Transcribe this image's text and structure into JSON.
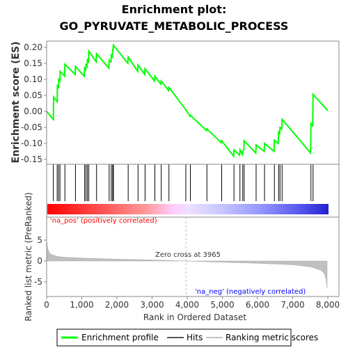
{
  "title_line1": "Enrichment plot:",
  "title_line2": "GO_PYRUVATE_METABOLIC_PROCESS",
  "colors": {
    "enrichment": "#00ff00",
    "hits": "#000000",
    "metric_fill": "#c0c0c0",
    "pos_label": "#ff0000",
    "neg_label": "#0000ff"
  },
  "chart_data": [
    {
      "type": "line",
      "name": "enrichment-score-panel",
      "ylabel": "Enrichment score (ES)",
      "xlim": [
        0,
        8000
      ],
      "ylim": [
        -0.16,
        0.22
      ],
      "yticks": [
        -0.15,
        -0.1,
        -0.05,
        0.0,
        0.05,
        0.1,
        0.15,
        0.2
      ],
      "yticklabels": [
        "-0.15",
        "-0.10",
        "-0.05",
        "0.00",
        "0.05",
        "0.10",
        "0.15",
        "0.20"
      ],
      "grid": false,
      "hits": [
        190,
        300,
        340,
        380,
        520,
        820,
        1080,
        1120,
        1160,
        1200,
        1420,
        1780,
        1840,
        1880,
        1900,
        2320,
        2600,
        2800,
        3080,
        3260,
        3480,
        3960,
        4090,
        4560,
        4980,
        5330,
        5500,
        5580,
        5620,
        5960,
        6200,
        6480,
        6600,
        6640,
        6700,
        7520,
        7580
      ],
      "es_points": [
        [
          0,
          0.0
        ],
        [
          190,
          -0.025
        ],
        [
          200,
          0.045
        ],
        [
          300,
          0.03
        ],
        [
          305,
          0.08
        ],
        [
          340,
          0.075
        ],
        [
          345,
          0.1
        ],
        [
          380,
          0.095
        ],
        [
          385,
          0.125
        ],
        [
          510,
          0.11
        ],
        [
          520,
          0.147
        ],
        [
          810,
          0.115
        ],
        [
          820,
          0.14
        ],
        [
          1070,
          0.11
        ],
        [
          1080,
          0.135
        ],
        [
          1110,
          0.13
        ],
        [
          1120,
          0.145
        ],
        [
          1150,
          0.14
        ],
        [
          1160,
          0.16
        ],
        [
          1190,
          0.155
        ],
        [
          1200,
          0.188
        ],
        [
          1410,
          0.155
        ],
        [
          1420,
          0.18
        ],
        [
          1770,
          0.135
        ],
        [
          1780,
          0.16
        ],
        [
          1830,
          0.155
        ],
        [
          1840,
          0.175
        ],
        [
          1870,
          0.17
        ],
        [
          1880,
          0.195
        ],
        [
          1890,
          0.19
        ],
        [
          1900,
          0.207
        ],
        [
          2310,
          0.15
        ],
        [
          2320,
          0.17
        ],
        [
          2590,
          0.125
        ],
        [
          2600,
          0.145
        ],
        [
          2790,
          0.115
        ],
        [
          2800,
          0.133
        ],
        [
          3070,
          0.095
        ],
        [
          3080,
          0.11
        ],
        [
          3250,
          0.085
        ],
        [
          3260,
          0.095
        ],
        [
          3470,
          0.065
        ],
        [
          3480,
          0.075
        ],
        [
          3960,
          0.005
        ],
        [
          4080,
          -0.015
        ],
        [
          4090,
          -0.012
        ],
        [
          4550,
          -0.06
        ],
        [
          4560,
          -0.055
        ],
        [
          4970,
          -0.098
        ],
        [
          4980,
          -0.092
        ],
        [
          5320,
          -0.14
        ],
        [
          5330,
          -0.12
        ],
        [
          5490,
          -0.137
        ],
        [
          5500,
          -0.12
        ],
        [
          5570,
          -0.135
        ],
        [
          5580,
          -0.125
        ],
        [
          5610,
          -0.12
        ],
        [
          5620,
          -0.092
        ],
        [
          5950,
          -0.13
        ],
        [
          5960,
          -0.105
        ],
        [
          6190,
          -0.125
        ],
        [
          6200,
          -0.1
        ],
        [
          6470,
          -0.125
        ],
        [
          6480,
          -0.09
        ],
        [
          6590,
          -0.1
        ],
        [
          6600,
          -0.065
        ],
        [
          6630,
          -0.07
        ],
        [
          6640,
          -0.05
        ],
        [
          6690,
          -0.055
        ],
        [
          6700,
          -0.025
        ],
        [
          7510,
          -0.13
        ],
        [
          7520,
          -0.038
        ],
        [
          7570,
          -0.045
        ],
        [
          7580,
          0.053
        ],
        [
          8000,
          0.002
        ]
      ]
    },
    {
      "type": "area",
      "name": "ranked-metric-panel",
      "xlabel": "Rank in Ordered Dataset",
      "ylabel": "Ranked list metric (PreRanked)",
      "xlim": [
        0,
        8000
      ],
      "ylim": [
        -7,
        8
      ],
      "xticks": [
        0,
        1000,
        2000,
        3000,
        4000,
        5000,
        6000,
        7000,
        8000
      ],
      "xticklabels": [
        "0",
        "1,000",
        "2,000",
        "3,000",
        "4,000",
        "5,000",
        "6,000",
        "7,000",
        "8,000"
      ],
      "yticks": [
        -5,
        0,
        5
      ],
      "yticklabels": [
        "-5",
        "0",
        "5"
      ],
      "metric_points": [
        [
          0,
          5.0
        ],
        [
          30,
          3.0
        ],
        [
          80,
          2.0
        ],
        [
          150,
          1.5
        ],
        [
          300,
          1.1
        ],
        [
          500,
          0.9
        ],
        [
          1000,
          0.7
        ],
        [
          2000,
          0.45
        ],
        [
          3000,
          0.25
        ],
        [
          3965,
          0.0
        ],
        [
          5000,
          -0.3
        ],
        [
          6000,
          -0.55
        ],
        [
          7000,
          -0.9
        ],
        [
          7500,
          -1.4
        ],
        [
          7800,
          -2.2
        ],
        [
          7900,
          -3.0
        ],
        [
          7950,
          -4.5
        ],
        [
          7980,
          -6.5
        ]
      ],
      "zero_cross_label": "Zero cross at 3965",
      "zero_cross": 3965,
      "pos_label": "'na_pos' (positively correlated)",
      "neg_label": "'na_neg' (negatively correlated)"
    }
  ],
  "legend": [
    {
      "label": "Enrichment profile",
      "kind": "enrichment"
    },
    {
      "label": "Hits",
      "kind": "hits"
    },
    {
      "label": "Ranking metric scores",
      "kind": "metric"
    }
  ]
}
